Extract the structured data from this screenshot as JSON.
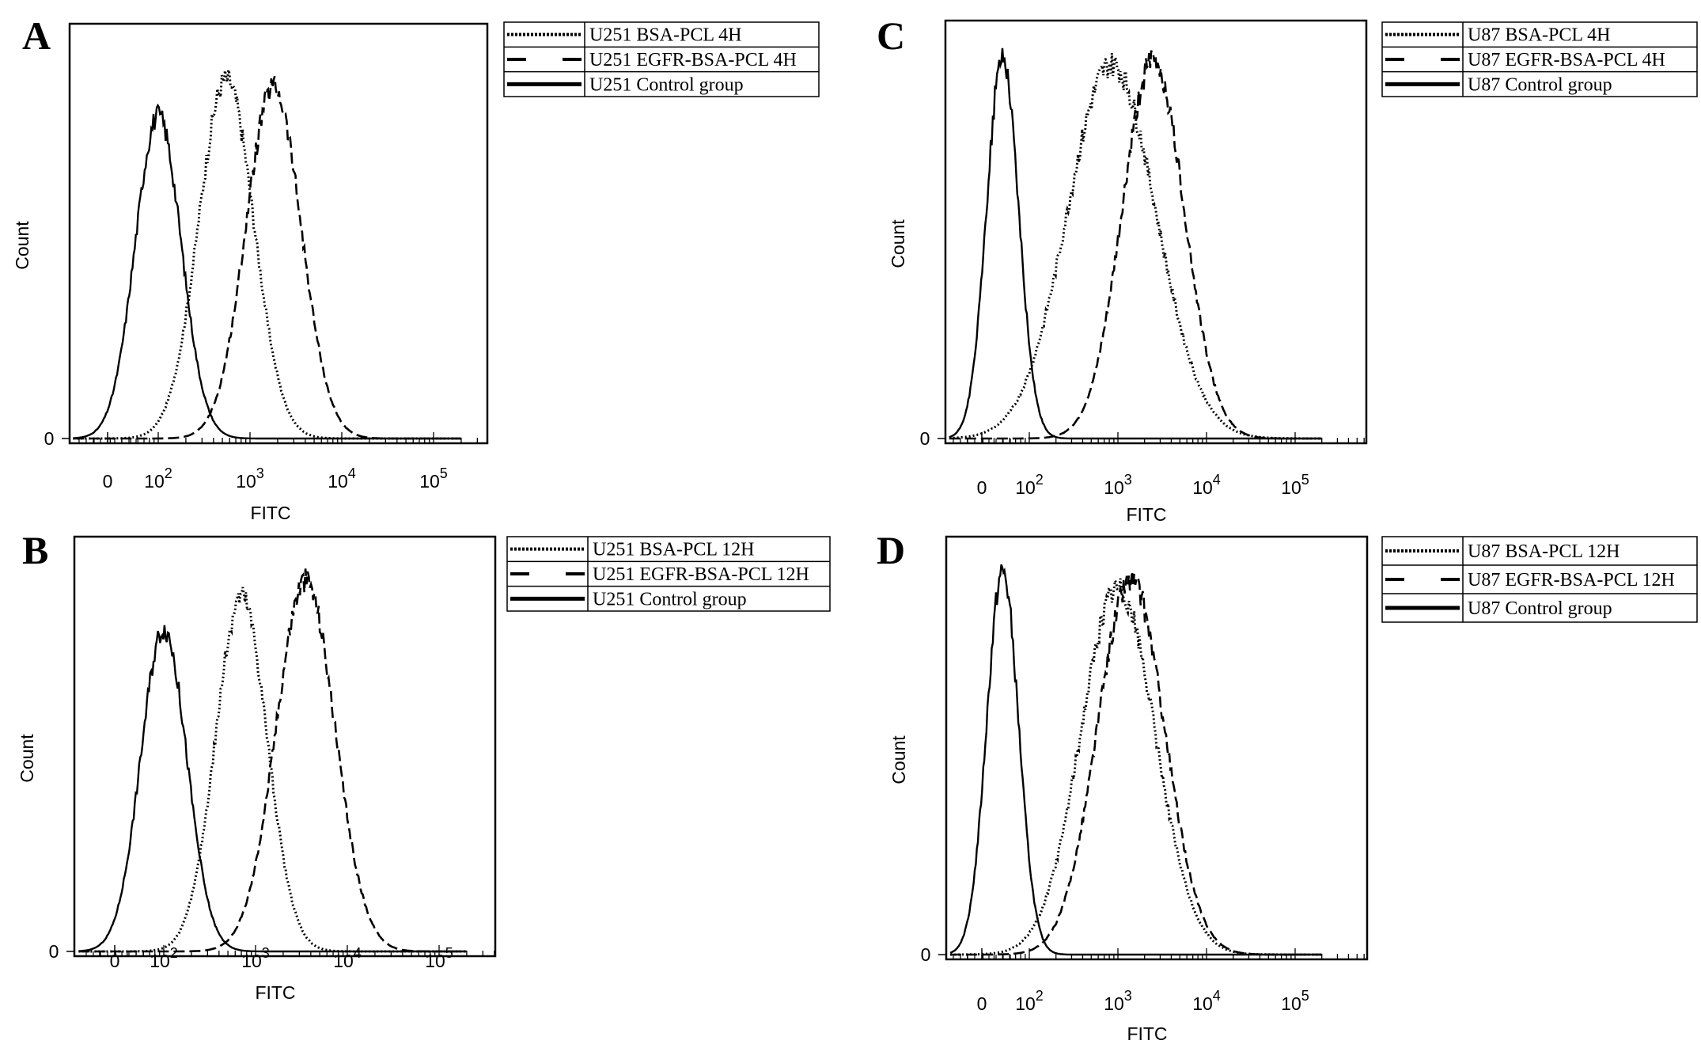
{
  "chart_data": [
    {
      "panel": "A",
      "type": "line",
      "xlabel": "FITC",
      "ylabel": "Count",
      "x_scale": "biexponential",
      "x_ticks": [
        "0",
        "10^2",
        "10^3",
        "10^4",
        "10^5"
      ],
      "y_ticks": [
        "0"
      ],
      "grid": false,
      "legend_position": "right",
      "series": [
        {
          "name": "U251 BSA-PCL 4H",
          "style": "dotted",
          "peak_x": 550,
          "peak_height": 0.89,
          "spread": 0.3
        },
        {
          "name": "U251 EGFR-BSA-PCL 4H",
          "style": "dashed",
          "peak_x": 1800,
          "peak_height": 0.87,
          "spread": 0.3
        },
        {
          "name": "U251 Control group",
          "style": "solid",
          "peak_x": 100,
          "peak_height": 0.8,
          "spread": 0.25
        }
      ]
    },
    {
      "panel": "B",
      "type": "line",
      "xlabel": "FITC",
      "ylabel": "Count",
      "x_scale": "biexponential",
      "x_ticks": [
        "0",
        "10^2",
        "10^3",
        "10^4",
        "10^5"
      ],
      "y_ticks": [
        "0"
      ],
      "grid": false,
      "legend_position": "right",
      "series": [
        {
          "name": "U251 BSA-PCL 12H",
          "style": "dotted",
          "peak_x": 700,
          "peak_height": 0.88,
          "spread": 0.28
        },
        {
          "name": "U251 EGFR-BSA-PCL 12H",
          "style": "dashed",
          "peak_x": 3500,
          "peak_height": 0.92,
          "spread": 0.32
        },
        {
          "name": "U251 Control group",
          "style": "solid",
          "peak_x": 100,
          "peak_height": 0.8,
          "spread": 0.25
        }
      ]
    },
    {
      "panel": "C",
      "type": "line",
      "xlabel": "FITC",
      "ylabel": "Count",
      "x_scale": "biexponential",
      "x_ticks": [
        "0",
        "10^2",
        "10^3",
        "10^4",
        "10^5"
      ],
      "y_ticks": [
        "0"
      ],
      "grid": false,
      "legend_position": "right",
      "series": [
        {
          "name": "U87 BSA-PCL 4H",
          "style": "dotted",
          "peak_x": 850,
          "peak_height": 0.92,
          "spread": 0.5
        },
        {
          "name": "U87 EGFR-BSA-PCL 4H",
          "style": "dashed",
          "peak_x": 2500,
          "peak_height": 0.93,
          "spread": 0.35
        },
        {
          "name": "U87 Control group",
          "style": "solid",
          "peak_x": 50,
          "peak_height": 0.94,
          "spread": 0.18
        }
      ]
    },
    {
      "panel": "D",
      "type": "line",
      "xlabel": "FITC",
      "ylabel": "Count",
      "x_scale": "biexponential",
      "x_ticks": [
        "0",
        "10^2",
        "10^3",
        "10^4",
        "10^5"
      ],
      "y_ticks": [
        "0"
      ],
      "grid": false,
      "legend_position": "right",
      "series": [
        {
          "name": "U87 BSA-PCL 12H",
          "style": "dotted",
          "peak_x": 1000,
          "peak_height": 0.9,
          "spread": 0.42
        },
        {
          "name": "U87 EGFR-BSA-PCL 12H",
          "style": "dashed",
          "peak_x": 1400,
          "peak_height": 0.92,
          "spread": 0.38
        },
        {
          "name": "U87 Control group",
          "style": "solid",
          "peak_x": 50,
          "peak_height": 0.94,
          "spread": 0.18
        }
      ]
    }
  ]
}
